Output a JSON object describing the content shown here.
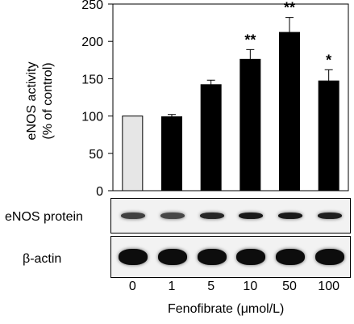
{
  "chart_data": {
    "type": "bar",
    "ylabel_line1": "eNOS activity",
    "ylabel_line2": "(% of control)",
    "xlabel": "Fenofibrate (μmol/L)",
    "ylim": [
      0,
      250
    ],
    "yticks": [
      "0",
      "50",
      "100",
      "150",
      "200",
      "250"
    ],
    "categories": [
      "0",
      "1",
      "5",
      "10",
      "50",
      "100"
    ],
    "values": [
      100,
      99,
      142,
      176,
      212,
      147
    ],
    "errors": [
      0,
      3,
      6,
      13,
      20,
      15
    ],
    "significance": [
      "",
      "",
      "",
      "**",
      "**",
      "*"
    ],
    "bar_colors": [
      "#e6e6e6",
      "#000000",
      "#000000",
      "#000000",
      "#000000",
      "#000000"
    ]
  },
  "blots": [
    {
      "label": "eNOS protein",
      "intensity": [
        0.75,
        0.72,
        0.85,
        0.9,
        0.9,
        0.88
      ]
    },
    {
      "label": "β-actin",
      "intensity": [
        0.95,
        0.95,
        0.95,
        0.95,
        0.95,
        0.95
      ]
    }
  ]
}
